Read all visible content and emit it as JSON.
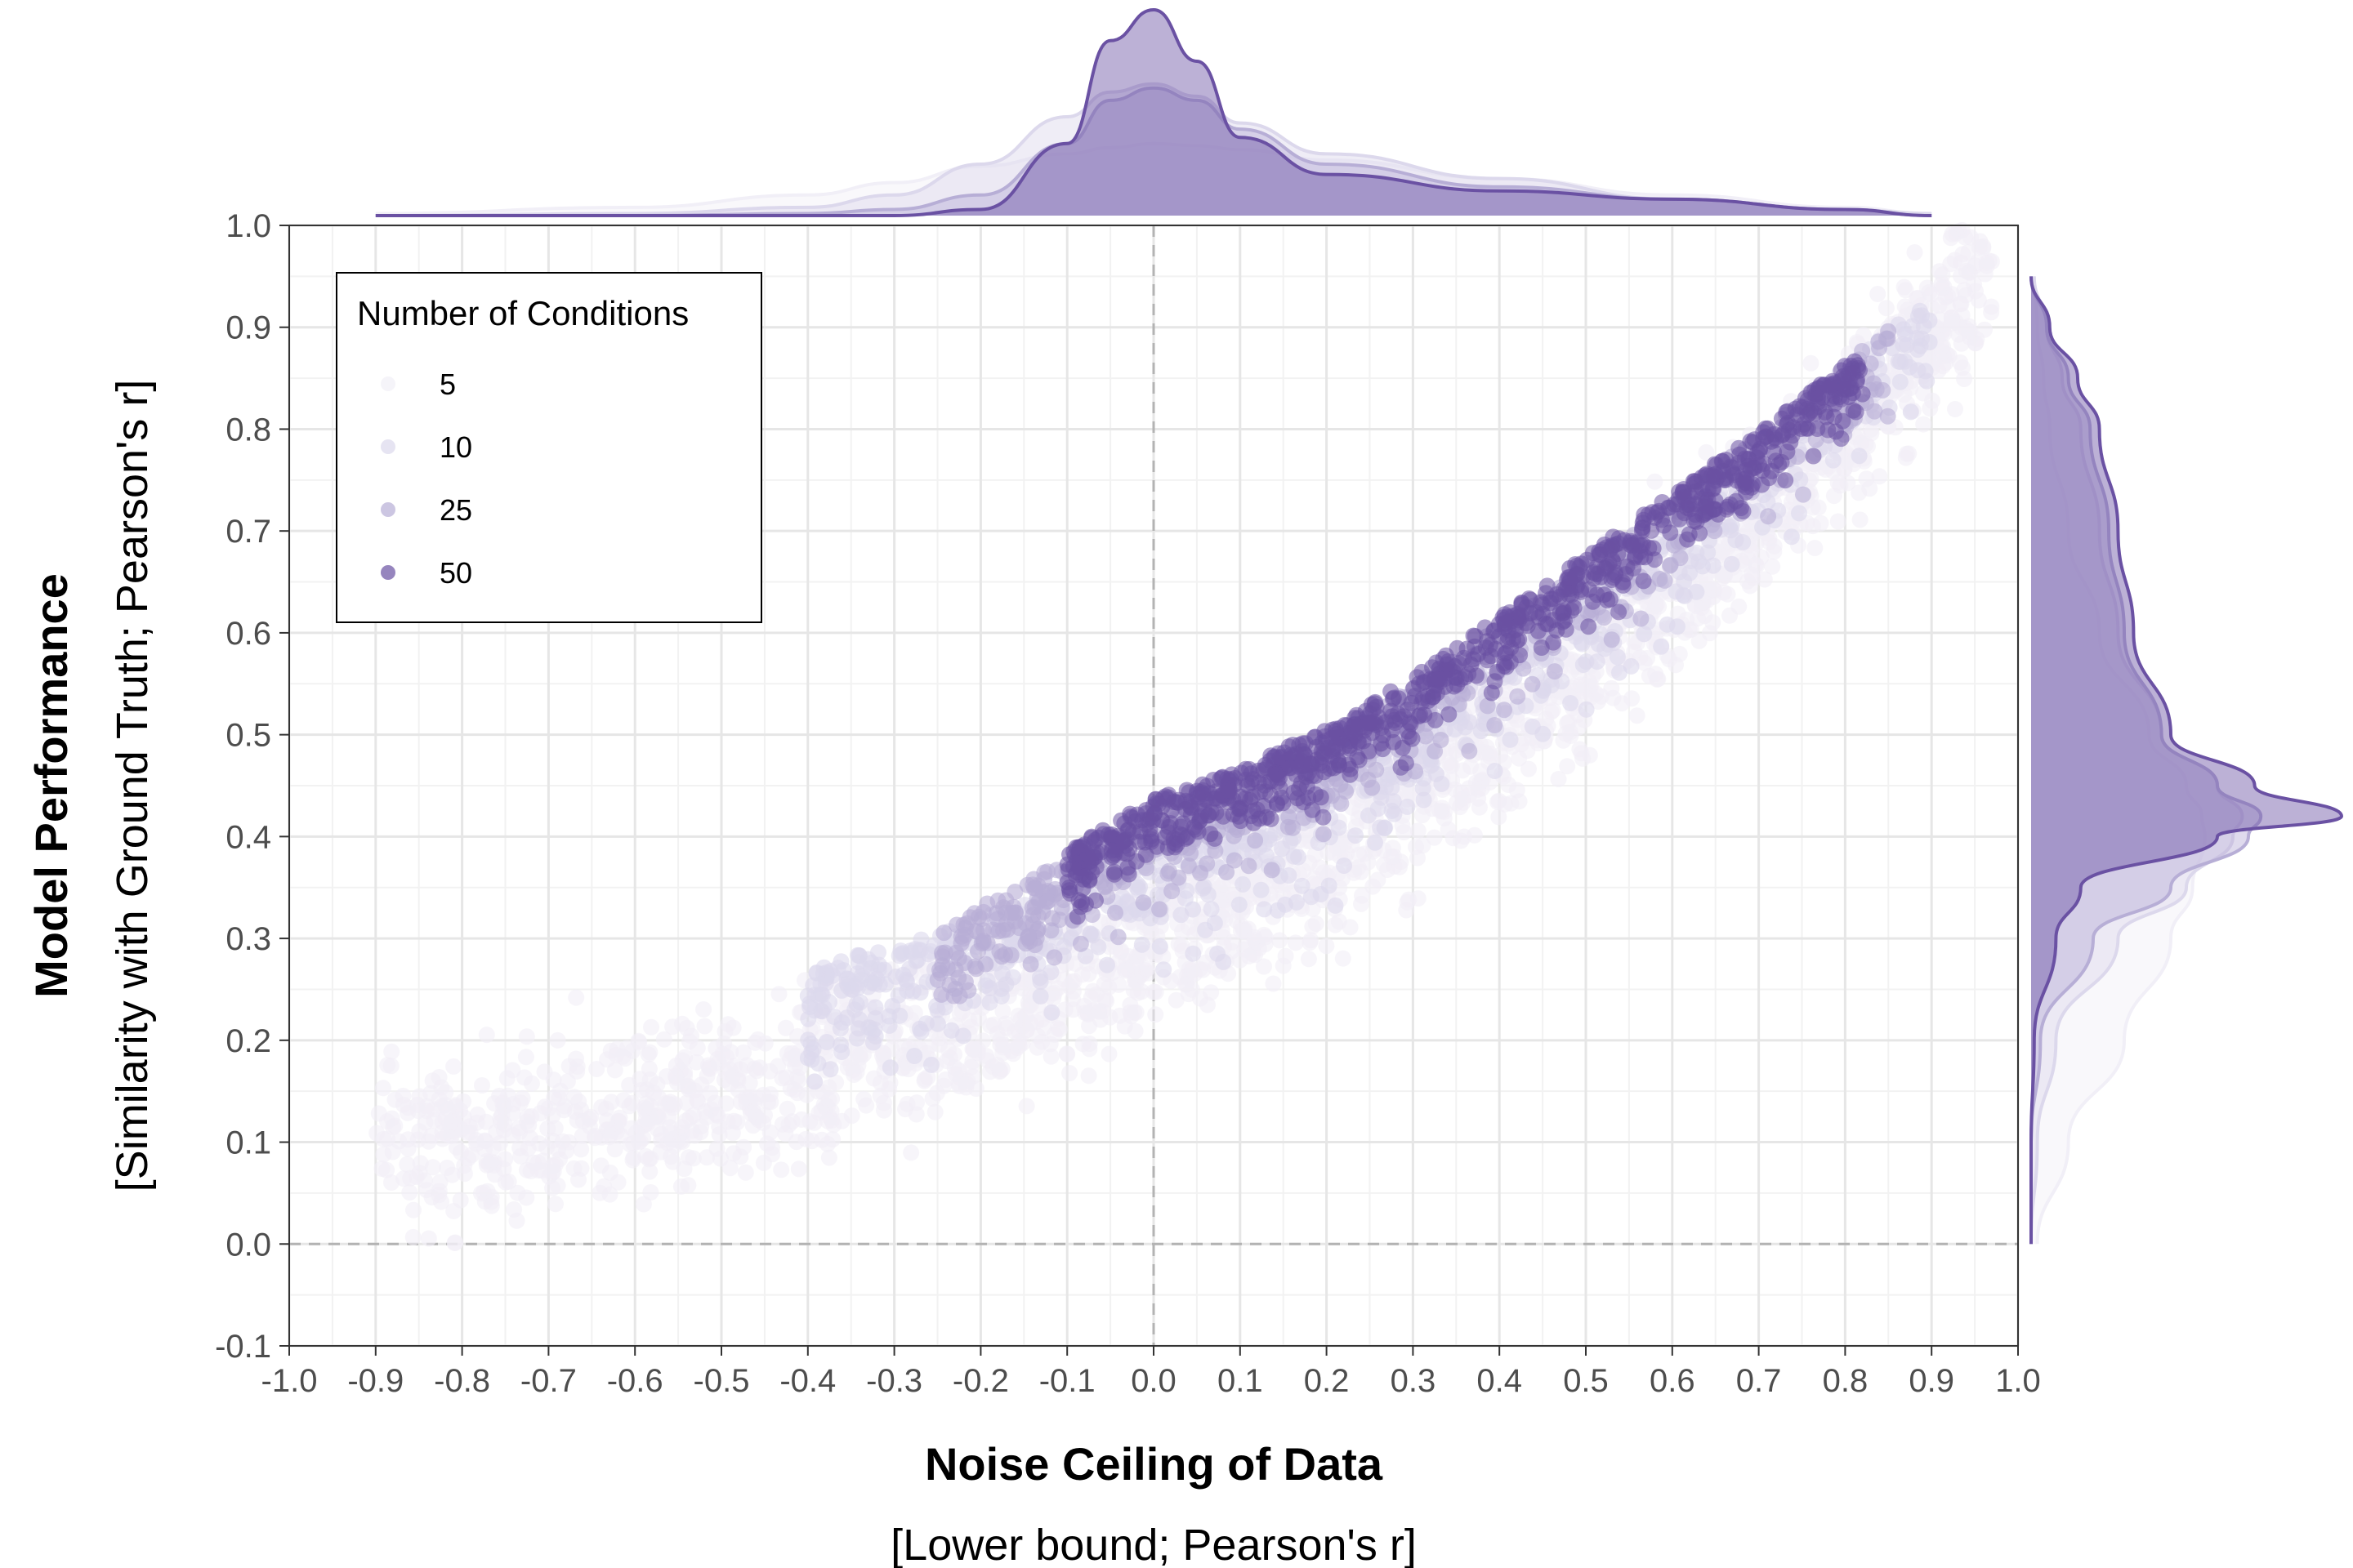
{
  "chart_data": {
    "type": "scatter",
    "title": "",
    "xlabel": "Noise Ceiling of Data",
    "xlabel_sub": "[Lower bound; Pearson's r]",
    "ylabel": "Model Performance",
    "ylabel_sub": "[Similarity with Ground Truth; Pearson's r]",
    "xlim": [
      -1.0,
      1.0
    ],
    "ylim": [
      -0.1,
      1.0
    ],
    "x_ticks": [
      "-1.0",
      "-0.9",
      "-0.8",
      "-0.7",
      "-0.6",
      "-0.5",
      "-0.4",
      "-0.3",
      "-0.2",
      "-0.1",
      "0.0",
      "0.1",
      "0.2",
      "0.3",
      "0.4",
      "0.5",
      "0.6",
      "0.7",
      "0.8",
      "0.9",
      "1.0"
    ],
    "y_ticks": [
      "-0.1",
      "0.0",
      "0.1",
      "0.2",
      "0.3",
      "0.4",
      "0.5",
      "0.6",
      "0.7",
      "0.8",
      "0.9",
      "1.0"
    ],
    "grid": true,
    "reference_lines": {
      "x": 0.0,
      "y": 0.0,
      "style": "dashed"
    },
    "legend": {
      "title": "Number of Conditions",
      "placement": "top-left",
      "entries": [
        {
          "label": "5",
          "color": "#f1eff7"
        },
        {
          "label": "10",
          "color": "#dcd8ec"
        },
        {
          "label": "25",
          "color": "#b7aed6"
        },
        {
          "label": "50",
          "color": "#6a51a3"
        }
      ]
    },
    "series": [
      {
        "name": "5",
        "color": "#f1eff7",
        "x_range": [
          -0.9,
          0.97
        ],
        "trend": [
          [
            -0.9,
            0.09
          ],
          [
            -0.6,
            0.13
          ],
          [
            -0.4,
            0.17
          ],
          [
            -0.2,
            0.22
          ],
          [
            0.0,
            0.29
          ],
          [
            0.2,
            0.38
          ],
          [
            0.4,
            0.5
          ],
          [
            0.6,
            0.64
          ],
          [
            0.8,
            0.8
          ],
          [
            0.97,
            0.97
          ]
        ],
        "spread": 0.06
      },
      {
        "name": "10",
        "color": "#dcd8ec",
        "x_range": [
          -0.4,
          0.9
        ],
        "trend": [
          [
            -0.4,
            0.26
          ],
          [
            -0.2,
            0.31
          ],
          [
            0.0,
            0.38
          ],
          [
            0.2,
            0.45
          ],
          [
            0.4,
            0.57
          ],
          [
            0.6,
            0.7
          ],
          [
            0.8,
            0.85
          ],
          [
            0.9,
            0.92
          ]
        ],
        "spread": 0.05
      },
      {
        "name": "25",
        "color": "#b7aed6",
        "x_range": [
          -0.25,
          0.85
        ],
        "trend": [
          [
            -0.25,
            0.3
          ],
          [
            -0.1,
            0.37
          ],
          [
            0.0,
            0.41
          ],
          [
            0.2,
            0.48
          ],
          [
            0.4,
            0.6
          ],
          [
            0.6,
            0.72
          ],
          [
            0.85,
            0.89
          ]
        ],
        "spread": 0.04
      },
      {
        "name": "50",
        "color": "#6a51a3",
        "x_range": [
          -0.1,
          0.82
        ],
        "trend": [
          [
            -0.1,
            0.38
          ],
          [
            0.0,
            0.43
          ],
          [
            0.1,
            0.46
          ],
          [
            0.2,
            0.5
          ],
          [
            0.3,
            0.55
          ],
          [
            0.4,
            0.61
          ],
          [
            0.5,
            0.67
          ],
          [
            0.6,
            0.73
          ],
          [
            0.7,
            0.79
          ],
          [
            0.82,
            0.87
          ]
        ],
        "spread": 0.03
      }
    ],
    "marginal_x_density": {
      "x": [
        -0.9,
        -0.6,
        -0.4,
        -0.3,
        -0.2,
        -0.1,
        -0.05,
        0.0,
        0.05,
        0.1,
        0.2,
        0.4,
        0.6,
        0.8,
        0.9
      ],
      "series": [
        {
          "name": "5",
          "density": [
            0.01,
            0.04,
            0.1,
            0.16,
            0.24,
            0.3,
            0.33,
            0.35,
            0.34,
            0.32,
            0.27,
            0.18,
            0.1,
            0.04,
            0.01
          ]
        },
        {
          "name": "10",
          "density": [
            0.0,
            0.01,
            0.04,
            0.1,
            0.25,
            0.48,
            0.6,
            0.64,
            0.58,
            0.45,
            0.3,
            0.18,
            0.08,
            0.03,
            0.01
          ]
        },
        {
          "name": "25",
          "density": [
            0.0,
            0.0,
            0.01,
            0.03,
            0.1,
            0.35,
            0.56,
            0.62,
            0.56,
            0.42,
            0.25,
            0.14,
            0.08,
            0.03,
            0.0
          ]
        },
        {
          "name": "50",
          "density": [
            0.0,
            0.0,
            0.0,
            0.0,
            0.03,
            0.35,
            0.85,
            1.0,
            0.75,
            0.38,
            0.2,
            0.12,
            0.08,
            0.03,
            0.0
          ]
        }
      ]
    },
    "marginal_y_density": {
      "y": [
        0.0,
        0.1,
        0.2,
        0.3,
        0.35,
        0.4,
        0.42,
        0.45,
        0.5,
        0.6,
        0.7,
        0.8,
        0.85,
        0.9,
        0.95
      ],
      "series": [
        {
          "name": "5",
          "density": [
            0.02,
            0.12,
            0.3,
            0.45,
            0.52,
            0.56,
            0.55,
            0.5,
            0.38,
            0.22,
            0.12,
            0.06,
            0.04,
            0.02,
            0.01
          ]
        },
        {
          "name": "10",
          "density": [
            0.0,
            0.02,
            0.08,
            0.28,
            0.5,
            0.65,
            0.68,
            0.6,
            0.42,
            0.28,
            0.22,
            0.16,
            0.1,
            0.05,
            0.01
          ]
        },
        {
          "name": "25",
          "density": [
            0.0,
            0.0,
            0.03,
            0.2,
            0.45,
            0.7,
            0.74,
            0.6,
            0.42,
            0.3,
            0.25,
            0.19,
            0.12,
            0.05,
            0.0
          ]
        },
        {
          "name": "50",
          "density": [
            0.0,
            0.0,
            0.01,
            0.08,
            0.16,
            0.6,
            1.0,
            0.72,
            0.45,
            0.33,
            0.28,
            0.22,
            0.15,
            0.06,
            0.0
          ]
        }
      ]
    }
  }
}
